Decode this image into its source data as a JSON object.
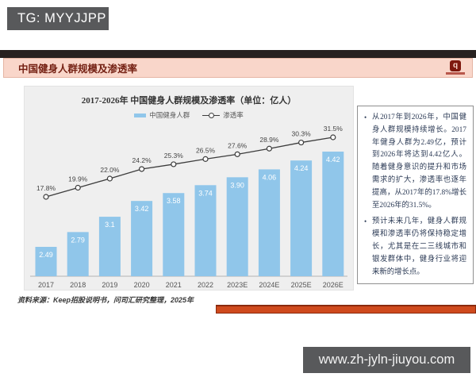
{
  "watermarks": {
    "tg": "TG: MYYJJPP",
    "url": "www.zh-jyln-jiuyou.com"
  },
  "header": {
    "title": "中国健身人群规模及渗透率",
    "logo_glyph": "q"
  },
  "chart_data": {
    "type": "bar",
    "title": "2017-2026年 中国健身人群规模及渗透率（单位：亿人）",
    "categories": [
      "2017",
      "2018",
      "2019",
      "2020",
      "2021",
      "2022",
      "2023E",
      "2024E",
      "2025E",
      "2026E"
    ],
    "series": [
      {
        "name": "中国健身人群",
        "type": "bar",
        "unit": "亿人",
        "values": [
          2.49,
          2.79,
          3.1,
          3.42,
          3.58,
          3.74,
          3.9,
          4.06,
          4.24,
          4.42
        ],
        "labels": [
          "2.49",
          "2.79",
          "3.1",
          "3.42",
          "3.58",
          "3.74",
          "3.90",
          "4.06",
          "4.24",
          "4.42"
        ],
        "color": "#90c6ea"
      },
      {
        "name": "渗透率",
        "type": "line",
        "unit": "%",
        "values": [
          17.8,
          19.9,
          22.0,
          24.2,
          25.3,
          26.5,
          27.6,
          28.9,
          30.3,
          31.5
        ],
        "labels": [
          "17.8%",
          "19.9%",
          "22.0%",
          "24.2%",
          "25.3%",
          "26.5%",
          "27.6%",
          "28.9%",
          "30.3%",
          "31.5%"
        ],
        "color": "#3c3c3c"
      }
    ],
    "legend_position": "top",
    "grid": false,
    "background": "#efefef"
  },
  "panel": {
    "bullets": [
      "从2017年到2026年，中国健身人群规模持续增长。2017年健身人群为2.49亿，预计到2026年将达到4.42亿人。随着健身意识的提升和市场需求的扩大，渗透率也逐年提高，从2017年的17.8%增长至2026年的31.5%。",
      "预计未来几年，健身人群规模和渗透率仍将保持稳定增长，尤其是在二三线城市和银发群体中，健身行业将迎来新的增长点。"
    ]
  },
  "source": {
    "text": "资料来源：Keep招股说明书，问司汇研究整理，2025年"
  }
}
